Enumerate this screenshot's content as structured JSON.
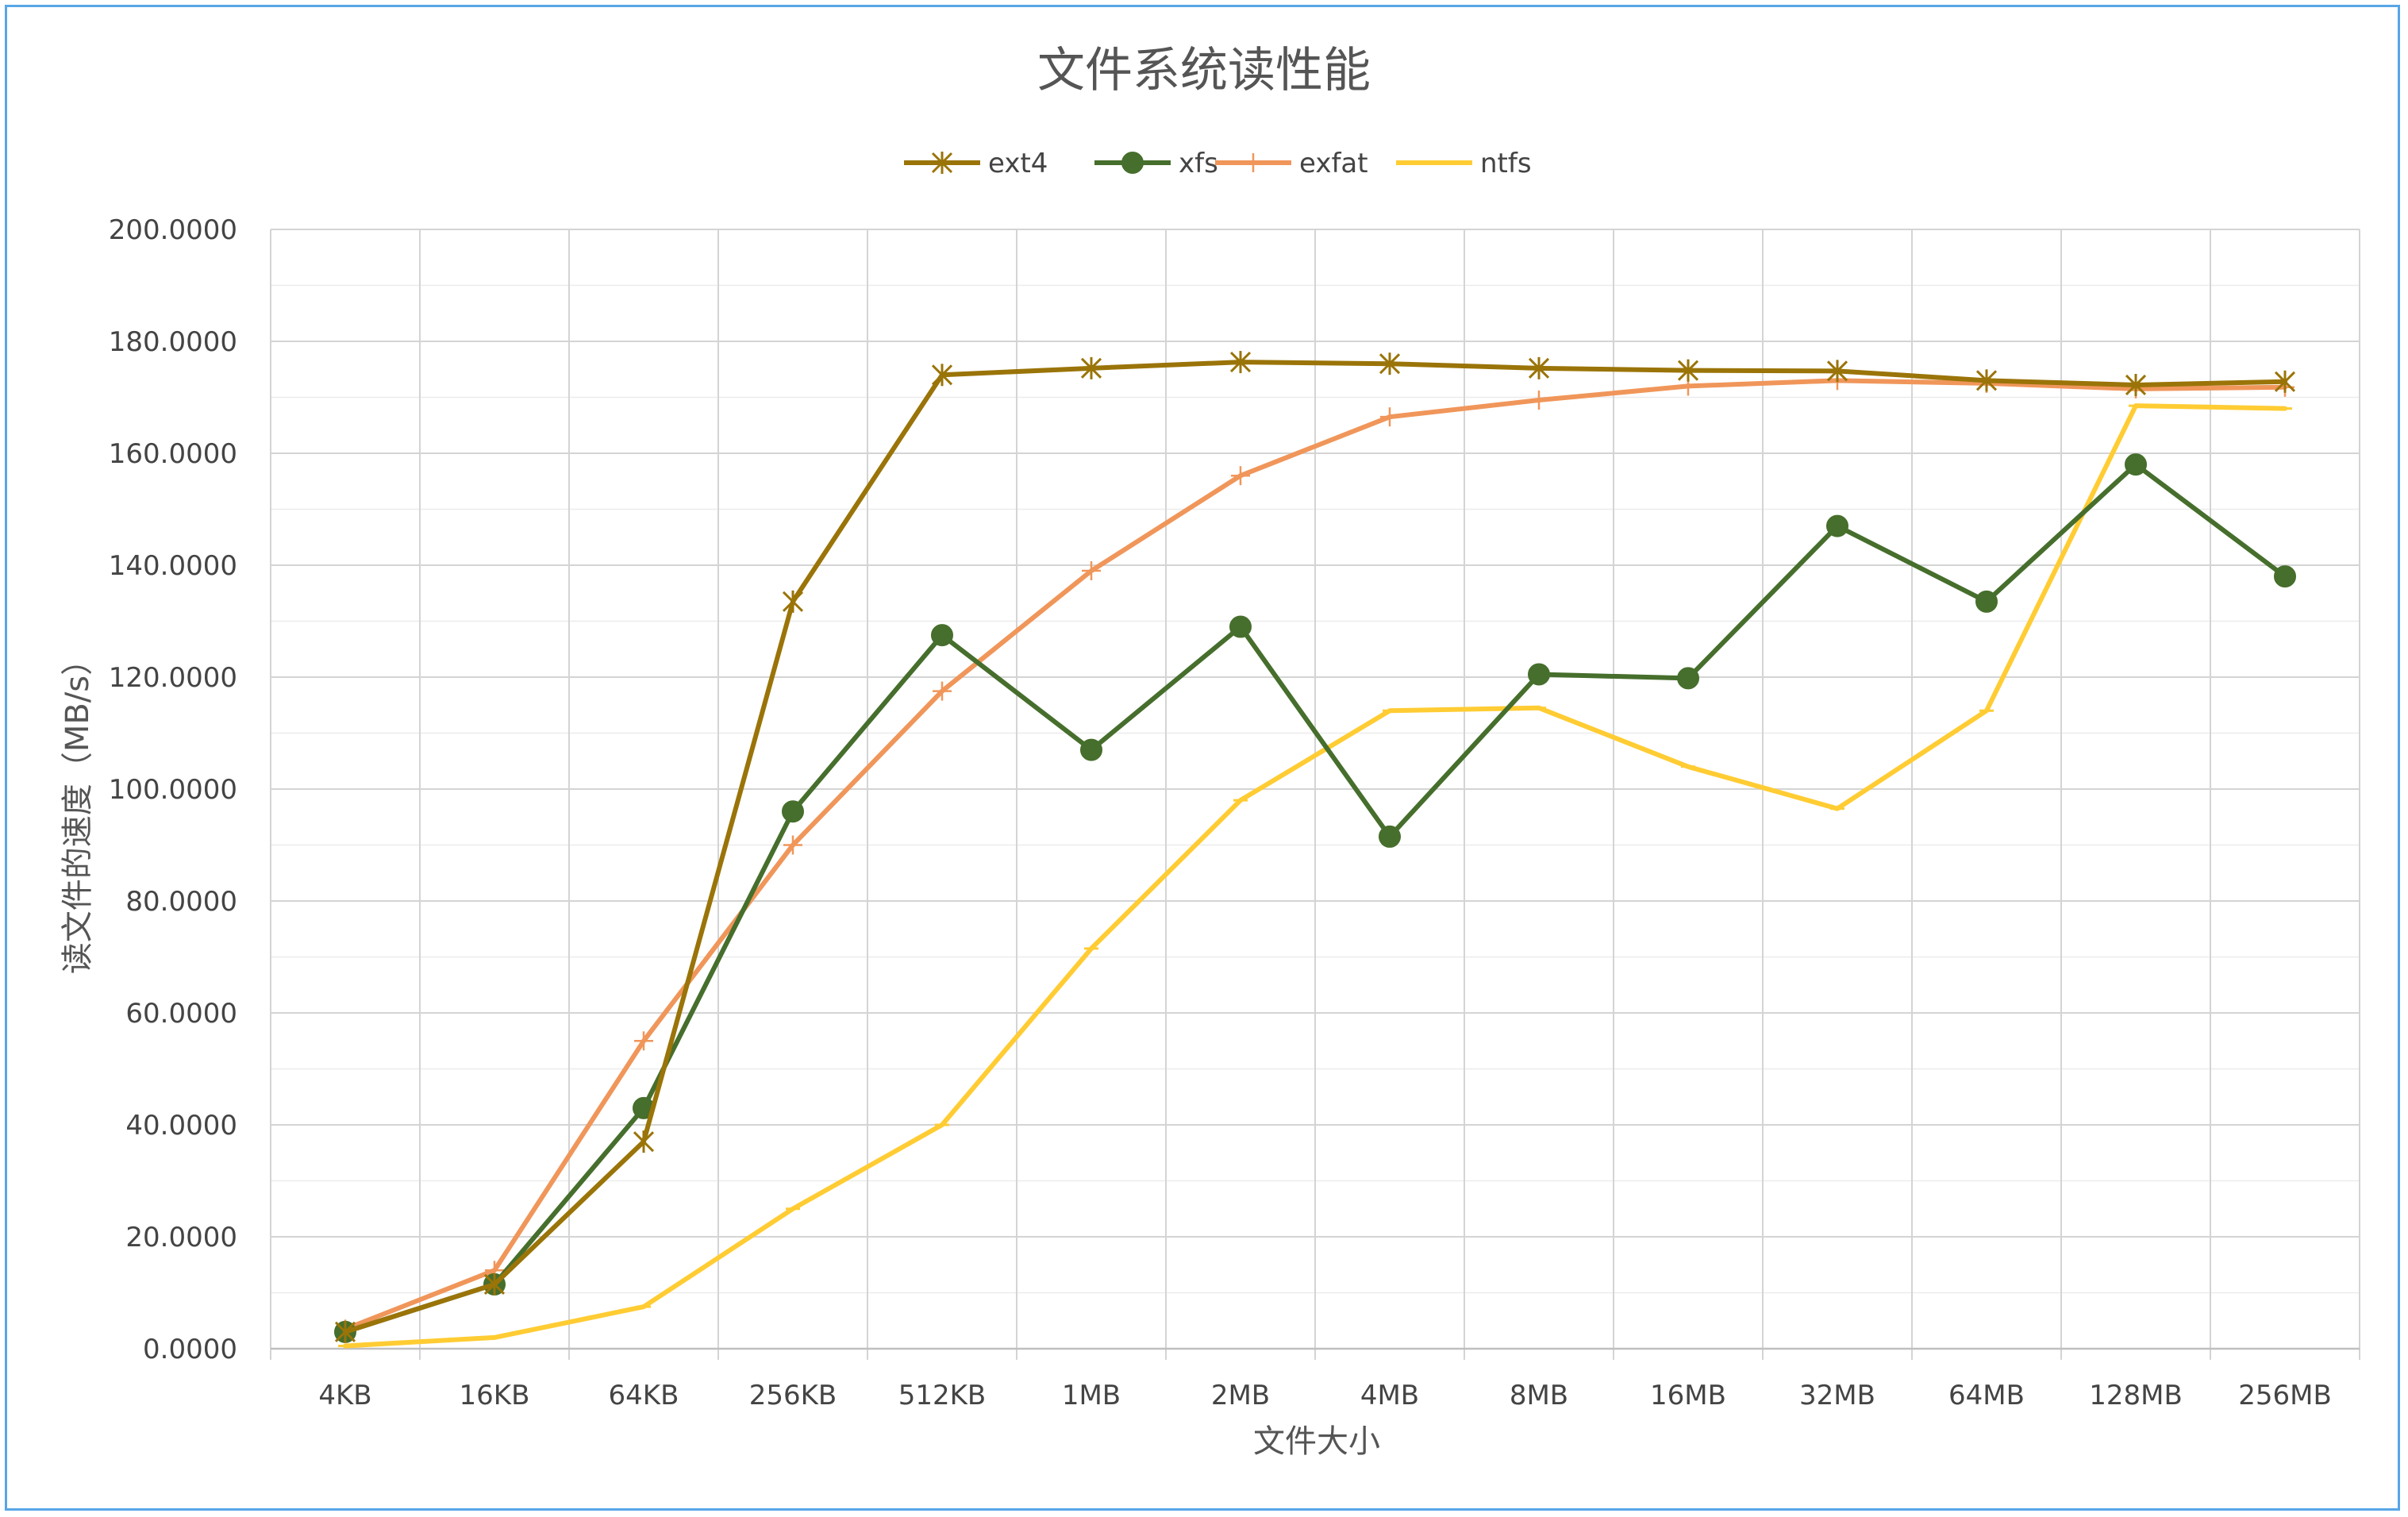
{
  "chart_data": {
    "type": "line",
    "title": "文件系统读性能",
    "xlabel": "文件大小",
    "ylabel": "读文件的速度（MB/s）",
    "categories": [
      "4KB",
      "16KB",
      "64KB",
      "256KB",
      "512KB",
      "1MB",
      "2MB",
      "4MB",
      "8MB",
      "16MB",
      "32MB",
      "64MB",
      "128MB",
      "256MB"
    ],
    "ylim": [
      0,
      200
    ],
    "yticks": [
      "0.0000",
      "20.0000",
      "40.0000",
      "60.0000",
      "80.0000",
      "100.0000",
      "120.0000",
      "140.0000",
      "160.0000",
      "180.0000",
      "200.0000"
    ],
    "grid": true,
    "legend_position": "top",
    "series": [
      {
        "name": "ext4",
        "color": "#9a7408",
        "marker": "star",
        "values": [
          3.0,
          11.5,
          37.0,
          133.5,
          174.0,
          175.2,
          176.3,
          176.0,
          175.2,
          174.8,
          174.7,
          173.0,
          172.2,
          172.8
        ]
      },
      {
        "name": "xfs",
        "color": "#466e2c",
        "marker": "circle",
        "values": [
          3.0,
          11.5,
          43.0,
          96.0,
          127.5,
          107.0,
          129.0,
          91.5,
          120.5,
          119.8,
          147.0,
          133.5,
          158.0,
          138.0
        ]
      },
      {
        "name": "exfat",
        "color": "#f0965a",
        "marker": "plus",
        "values": [
          3.5,
          14.0,
          55.0,
          90.0,
          117.5,
          139.0,
          156.0,
          166.5,
          169.5,
          172.0,
          173.0,
          172.5,
          171.5,
          171.8
        ]
      },
      {
        "name": "ntfs",
        "color": "#ffcc33",
        "marker": "dash",
        "values": [
          0.5,
          2.0,
          7.5,
          25.0,
          40.0,
          71.5,
          98.0,
          114.0,
          114.5,
          104.0,
          96.5,
          114.0,
          168.5,
          168.0
        ]
      }
    ]
  }
}
